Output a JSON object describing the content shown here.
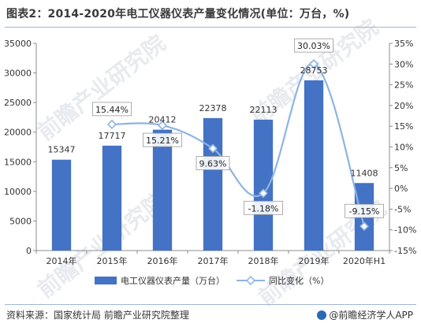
{
  "title": "图表2：2014-2020年电工仪器仪表产量变化情况(单位：万台，%)",
  "source": "资料来源：国家统计局  前瞻产业研究院整理",
  "brand": "@前瞻经济学人APP",
  "watermark": "前瞻产业研究院",
  "colors": {
    "bar": "#4472c4",
    "line": "#8db4e2",
    "marker": "#ffffff",
    "axis": "#8c8c8c"
  },
  "chart_data": {
    "type": "bar",
    "categories": [
      "2014年",
      "2015年",
      "2016年",
      "2017年",
      "2018年",
      "2019年",
      "2020年H1"
    ],
    "series": [
      {
        "name": "电工仪器仪表产量（万台）",
        "type": "bar",
        "axis": "left",
        "values": [
          15347,
          17717,
          20412,
          22378,
          22113,
          28753,
          11408
        ],
        "labels": [
          "15347",
          "17717",
          "20412",
          "22378",
          "22113",
          "28753",
          "11408"
        ]
      },
      {
        "name": "同比变化（%）",
        "type": "line",
        "axis": "right",
        "values": [
          null,
          15.44,
          15.21,
          9.63,
          -1.18,
          30.03,
          -9.15
        ],
        "labels": [
          "",
          "15.44%",
          "15.21%",
          "9.63%",
          "-1.18%",
          "30.03%",
          "-9.15%"
        ]
      }
    ],
    "y_left": {
      "min": 0,
      "max": 35000,
      "step": 5000,
      "ticks": [
        "0",
        "5000",
        "10000",
        "15000",
        "20000",
        "25000",
        "30000",
        "35000"
      ]
    },
    "y_right": {
      "min": -15,
      "max": 35,
      "step": 5,
      "ticks": [
        "-15%",
        "-10%",
        "-5%",
        "0%",
        "5%",
        "10%",
        "15%",
        "20%",
        "25%",
        "30%",
        "35%"
      ]
    },
    "legend_position": "bottom"
  }
}
